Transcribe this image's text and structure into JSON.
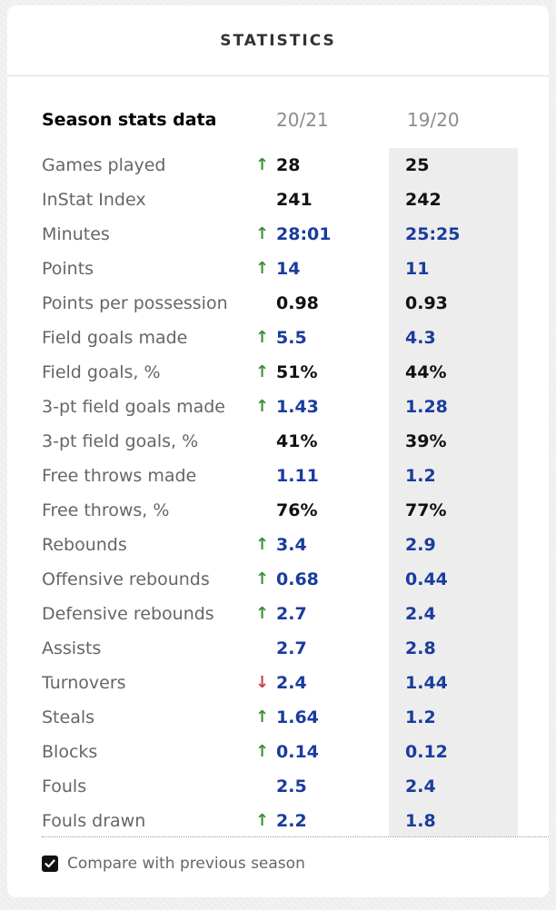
{
  "widget": {
    "title": "STATISTICS"
  },
  "table": {
    "section_title": "Season stats data",
    "current_season": "20/21",
    "previous_season": "19/20",
    "rows": [
      {
        "label": "Games played",
        "trend": "up",
        "current": "28",
        "previous": "25",
        "current_link": false,
        "previous_link": false
      },
      {
        "label": "InStat Index",
        "trend": "none",
        "current": "241",
        "previous": "242",
        "current_link": false,
        "previous_link": false
      },
      {
        "label": "Minutes",
        "trend": "up",
        "current": "28:01",
        "previous": "25:25",
        "current_link": true,
        "previous_link": true
      },
      {
        "label": "Points",
        "trend": "up",
        "current": "14",
        "previous": "11",
        "current_link": true,
        "previous_link": true
      },
      {
        "label": "Points per possession",
        "trend": "none",
        "current": "0.98",
        "previous": "0.93",
        "current_link": false,
        "previous_link": false
      },
      {
        "label": "Field goals made",
        "trend": "up",
        "current": "5.5",
        "previous": "4.3",
        "current_link": true,
        "previous_link": true
      },
      {
        "label": "Field goals, %",
        "trend": "up",
        "current": "51%",
        "previous": "44%",
        "current_link": false,
        "previous_link": false
      },
      {
        "label": "3-pt field goals made",
        "trend": "up",
        "current": "1.43",
        "previous": "1.28",
        "current_link": true,
        "previous_link": true
      },
      {
        "label": "3-pt field goals, %",
        "trend": "none",
        "current": "41%",
        "previous": "39%",
        "current_link": false,
        "previous_link": false
      },
      {
        "label": "Free throws made",
        "trend": "none",
        "current": "1.11",
        "previous": "1.2",
        "current_link": true,
        "previous_link": true
      },
      {
        "label": "Free throws, %",
        "trend": "none",
        "current": "76%",
        "previous": "77%",
        "current_link": false,
        "previous_link": false
      },
      {
        "label": "Rebounds",
        "trend": "up",
        "current": "3.4",
        "previous": "2.9",
        "current_link": true,
        "previous_link": true
      },
      {
        "label": "Offensive rebounds",
        "trend": "up",
        "current": "0.68",
        "previous": "0.44",
        "current_link": true,
        "previous_link": true
      },
      {
        "label": "Defensive rebounds",
        "trend": "up",
        "current": "2.7",
        "previous": "2.4",
        "current_link": true,
        "previous_link": true
      },
      {
        "label": "Assists",
        "trend": "none",
        "current": "2.7",
        "previous": "2.8",
        "current_link": true,
        "previous_link": true
      },
      {
        "label": "Turnovers",
        "trend": "down",
        "current": "2.4",
        "previous": "1.44",
        "current_link": true,
        "previous_link": true
      },
      {
        "label": "Steals",
        "trend": "up",
        "current": "1.64",
        "previous": "1.2",
        "current_link": true,
        "previous_link": true
      },
      {
        "label": "Blocks",
        "trend": "up",
        "current": "0.14",
        "previous": "0.12",
        "current_link": true,
        "previous_link": true
      },
      {
        "label": "Fouls",
        "trend": "none",
        "current": "2.5",
        "previous": "2.4",
        "current_link": true,
        "previous_link": true
      },
      {
        "label": "Fouls drawn",
        "trend": "up",
        "current": "2.2",
        "previous": "1.8",
        "current_link": true,
        "previous_link": true
      }
    ]
  },
  "compare": {
    "checked": true,
    "label": "Compare with previous season"
  },
  "icons": {
    "trend_up": "arrow-up-icon",
    "trend_down": "arrow-down-icon",
    "checkbox": "checkmark-icon"
  },
  "colors": {
    "link_value": "#1a3c9e",
    "plain_value": "#111111",
    "trend_up": "#3c8f36",
    "trend_down": "#c8434a",
    "label": "#666666",
    "previous_column_bg": "#ededed"
  }
}
